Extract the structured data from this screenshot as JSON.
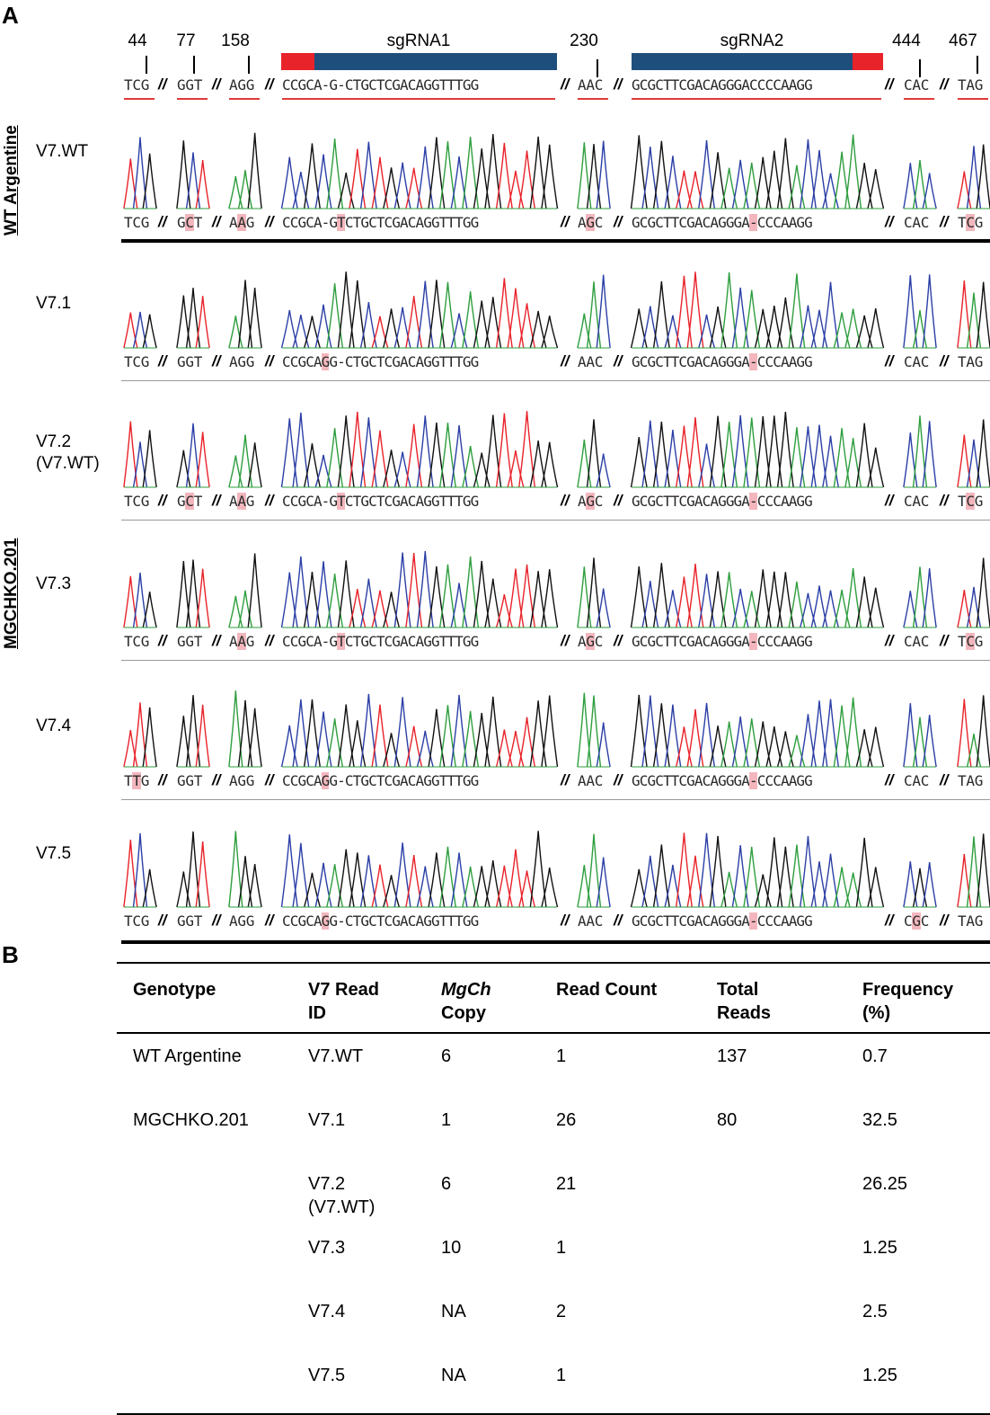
{
  "panels": {
    "a": "A",
    "b": "B"
  },
  "positions": [
    "44",
    "77",
    "158",
    "230",
    "444",
    "467"
  ],
  "sgrna": {
    "one": "sgRNA1",
    "two": "sgRNA2"
  },
  "colors": {
    "pam": "#e8232a",
    "sgrna": "#1e4f7c",
    "A": "#2e9e3e",
    "C": "#2b3fa6",
    "G": "#111111",
    "T": "#e8232a",
    "highlight": "#f3b6bd"
  },
  "separator": "//",
  "reference": [
    "TCG",
    "GGT",
    "AGG",
    "CCGCA-G-CTGCTCGACAGGTTTGG",
    "AAC",
    "GCGCTTCGACAGGGACCCCAAGG",
    "CAC",
    "TAG"
  ],
  "groups": {
    "wt": "WT Argentine",
    "ko": "MGCHKO.201"
  },
  "reads": [
    {
      "label": "V7.WT",
      "segments": [
        [
          "TCG",
          []
        ],
        [
          "GCT",
          [
            1
          ]
        ],
        [
          "AAG",
          [
            1
          ]
        ],
        [
          "CCGCA-GTCTGCTCGACAGGTTTGG",
          [
            7
          ]
        ],
        [
          "AGC",
          [
            1
          ]
        ],
        [
          "GCGCTTCGACAGGGA-CCCAAGG",
          [
            15
          ]
        ],
        [
          "CAC",
          []
        ],
        [
          "TCG",
          [
            1
          ]
        ]
      ]
    },
    {
      "label": "V7.1",
      "segments": [
        [
          "TCG",
          []
        ],
        [
          "GGT",
          []
        ],
        [
          "AGG",
          []
        ],
        [
          "CCGCAGG-CTGCTCGACAGGTTTGG",
          [
            5
          ]
        ],
        [
          "AAC",
          []
        ],
        [
          "GCGCTTCGACAGGGA-CCCAAGG",
          [
            15
          ]
        ],
        [
          "CAC",
          []
        ],
        [
          "TAG",
          []
        ]
      ]
    },
    {
      "label": "V7.2\n(V7.WT)",
      "segments": [
        [
          "TCG",
          []
        ],
        [
          "GCT",
          [
            1
          ]
        ],
        [
          "AAG",
          [
            1
          ]
        ],
        [
          "CCGCA-GTCTGCTCGACAGGTTTGG",
          [
            7
          ]
        ],
        [
          "AGC",
          [
            1
          ]
        ],
        [
          "GCGCTTCGACAGGGA-CCCAAGG",
          [
            15
          ]
        ],
        [
          "CAC",
          []
        ],
        [
          "TCG",
          [
            1
          ]
        ]
      ]
    },
    {
      "label": "V7.3",
      "segments": [
        [
          "TCG",
          []
        ],
        [
          "GGT",
          []
        ],
        [
          "AAG",
          [
            1
          ]
        ],
        [
          "CCGCA-GTCTGCTCGACAGGTTTGG",
          [
            7
          ]
        ],
        [
          "AGC",
          [
            1
          ]
        ],
        [
          "GCGCTTCGACAGGGA-CCCAAGG",
          [
            15
          ]
        ],
        [
          "CAC",
          []
        ],
        [
          "TCG",
          [
            1
          ]
        ]
      ]
    },
    {
      "label": "V7.4",
      "segments": [
        [
          "TTG",
          [
            1
          ]
        ],
        [
          "GGT",
          []
        ],
        [
          "AGG",
          []
        ],
        [
          "CCGCAGG-CTGCTCGACAGGTTTGG",
          [
            5
          ]
        ],
        [
          "AAC",
          []
        ],
        [
          "GCGCTTCGACAGGGA-CCCAAGG",
          [
            15
          ]
        ],
        [
          "CAC",
          []
        ],
        [
          "TAG",
          []
        ]
      ]
    },
    {
      "label": "V7.5",
      "segments": [
        [
          "TCG",
          []
        ],
        [
          "GGT",
          []
        ],
        [
          "AGG",
          []
        ],
        [
          "CCGCAGG-CTGCTCGACAGGTTTGG",
          [
            5
          ]
        ],
        [
          "AAC",
          []
        ],
        [
          "GCGCTTCGACAGGGA-CCCAAGG",
          [
            15
          ]
        ],
        [
          "CGC",
          [
            1
          ]
        ],
        [
          "TAG",
          []
        ]
      ]
    }
  ],
  "table": {
    "headers": {
      "genotype": "Genotype",
      "read_id_1": "V7 Read",
      "read_id_2": "ID",
      "copy_1": "MgCh",
      "copy_2": "Copy",
      "count": "Read Count",
      "total_1": "Total",
      "total_2": "Reads",
      "freq_1": "Frequency",
      "freq_2": "(%)"
    },
    "rows": [
      {
        "genotype": "WT Argentine",
        "id": "V7.WT",
        "copy": "6",
        "count": "1",
        "total": "137",
        "freq": "0.7"
      },
      {
        "genotype": "MGCHKO.201",
        "id": "V7.1",
        "copy": "1",
        "count": "26",
        "total": "80",
        "freq": "32.5"
      },
      {
        "genotype": "",
        "id": "V7.2\n(V7.WT)",
        "copy": "6",
        "count": "21",
        "total": "",
        "freq": "26.25"
      },
      {
        "genotype": "",
        "id": "V7.3",
        "copy": "10",
        "count": "1",
        "total": "",
        "freq": "1.25"
      },
      {
        "genotype": "",
        "id": "V7.4",
        "copy": "NA",
        "count": "2",
        "total": "",
        "freq": "2.5"
      },
      {
        "genotype": "",
        "id": "V7.5",
        "copy": "NA",
        "count": "1",
        "total": "",
        "freq": "1.25"
      }
    ]
  }
}
